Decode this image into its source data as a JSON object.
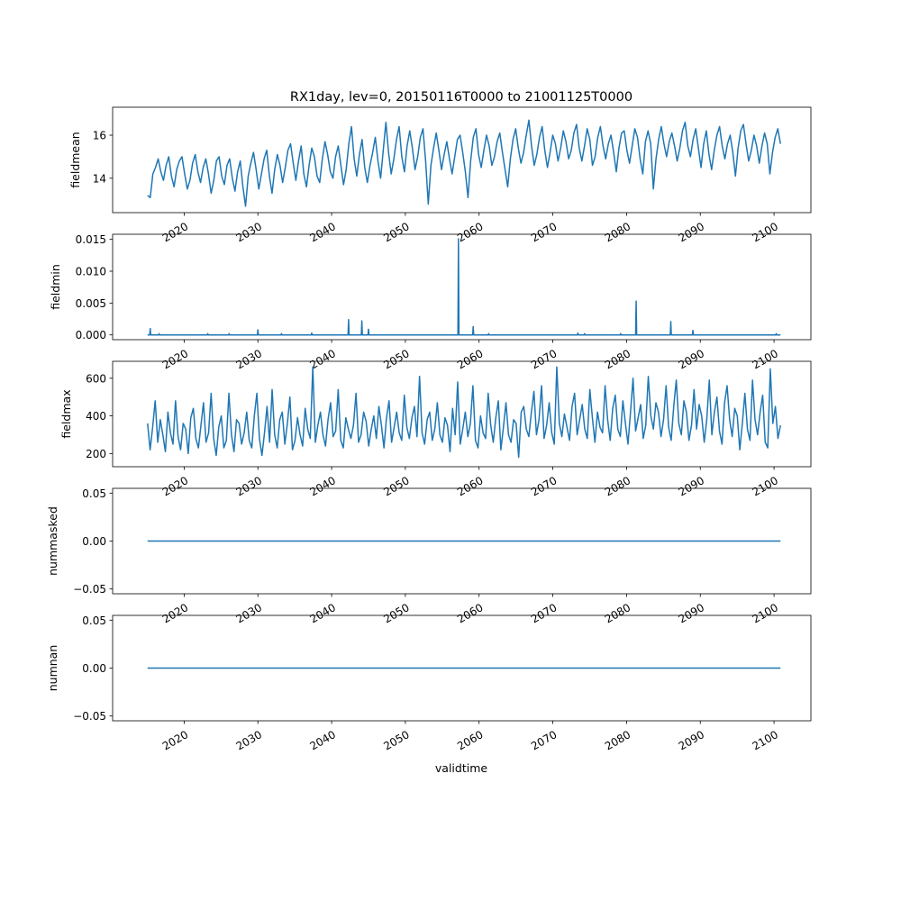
{
  "figure": {
    "title": "RX1day, lev=0, 20150116T0000 to 21001125T0000",
    "xlabel": "validtime",
    "line_color": "#1f77b4"
  },
  "chart_data": [
    {
      "type": "line",
      "ylabel": "fieldmean",
      "xlim": [
        2010.3,
        2105.0
      ],
      "ylim": [
        12.4,
        17.3
      ],
      "yticks": [
        14,
        16
      ],
      "yticklabels": [
        "14",
        "16"
      ],
      "xticks": [
        2020,
        2030,
        2040,
        2050,
        2060,
        2070,
        2080,
        2090,
        2100
      ],
      "xticklabels": [
        "2020",
        "2030",
        "2040",
        "2050",
        "2060",
        "2070",
        "2080",
        "2090",
        "2100"
      ],
      "series": [
        {
          "x_start": "2015-01",
          "x_end": "2100-11",
          "values": [
            13.2,
            13.1,
            14.2,
            14.5,
            14.9,
            14.3,
            13.9,
            14.6,
            15.0,
            14.1,
            13.6,
            14.4,
            14.8,
            15.0,
            14.2,
            13.5,
            13.9,
            14.7,
            15.1,
            14.3,
            13.8,
            14.5,
            14.9,
            14.2,
            13.3,
            13.9,
            14.8,
            15.0,
            14.1,
            13.7,
            14.6,
            14.9,
            14.0,
            13.4,
            14.3,
            14.8,
            13.6,
            12.7,
            14.1,
            14.7,
            15.2,
            14.4,
            13.5,
            14.2,
            14.9,
            15.3,
            14.1,
            13.3,
            14.4,
            15.1,
            14.6,
            13.8,
            14.5,
            15.3,
            15.6,
            14.7,
            13.9,
            14.8,
            15.5,
            14.2,
            13.6,
            14.6,
            15.4,
            15.0,
            14.1,
            13.8,
            14.9,
            15.7,
            15.1,
            14.3,
            14.0,
            15.0,
            15.5,
            14.6,
            13.7,
            14.4,
            15.6,
            16.4,
            14.9,
            14.1,
            15.1,
            15.8,
            14.5,
            13.8,
            14.6,
            15.2,
            15.9,
            14.8,
            14.0,
            15.3,
            16.6,
            15.2,
            14.2,
            14.9,
            15.8,
            16.4,
            15.0,
            14.3,
            15.5,
            16.2,
            15.4,
            14.4,
            15.0,
            15.9,
            16.3,
            14.8,
            12.8,
            14.6,
            15.4,
            16.1,
            15.3,
            14.4,
            15.1,
            15.7,
            14.9,
            14.2,
            15.0,
            15.8,
            16.0,
            15.2,
            14.3,
            13.1,
            14.8,
            15.9,
            16.3,
            15.1,
            14.5,
            15.3,
            16.0,
            15.5,
            14.6,
            15.0,
            15.7,
            16.1,
            15.2,
            14.4,
            13.6,
            14.9,
            15.8,
            16.3,
            15.4,
            14.7,
            15.2,
            16.0,
            16.7,
            15.5,
            14.6,
            15.1,
            15.9,
            16.4,
            15.3,
            14.5,
            15.2,
            16.0,
            15.6,
            14.8,
            15.4,
            16.2,
            15.7,
            14.9,
            15.3,
            16.1,
            16.5,
            15.4,
            14.8,
            15.5,
            16.3,
            15.8,
            14.6,
            15.0,
            15.9,
            16.4,
            15.5,
            14.9,
            15.6,
            16.0,
            15.2,
            14.3,
            15.4,
            16.1,
            16.2,
            15.3,
            14.7,
            15.5,
            16.3,
            15.9,
            14.9,
            14.2,
            15.7,
            16.2,
            15.6,
            13.5,
            14.9,
            15.8,
            16.4,
            15.6,
            15.0,
            15.7,
            16.1,
            15.5,
            14.8,
            15.4,
            16.2,
            16.6,
            15.5,
            15.0,
            15.8,
            16.3,
            15.4,
            14.5,
            15.6,
            16.2,
            15.1,
            14.4,
            15.3,
            16.0,
            16.4,
            15.5,
            14.9,
            15.6,
            16.0,
            15.2,
            14.1,
            15.4,
            16.2,
            16.5,
            15.6,
            14.8,
            15.3,
            16.0,
            15.5,
            14.7,
            15.5,
            16.1,
            15.6,
            14.2,
            15.2,
            15.9,
            16.3,
            15.6
          ]
        }
      ]
    },
    {
      "type": "line",
      "ylabel": "fieldmin",
      "xlim": [
        2010.3,
        2105.0
      ],
      "ylim": [
        -0.00075,
        0.0158
      ],
      "yticks": [
        0.0,
        0.005,
        0.01,
        0.015
      ],
      "yticklabels": [
        "0.000",
        "0.005",
        "0.010",
        "0.015"
      ],
      "xticks": [
        2020,
        2030,
        2040,
        2050,
        2060,
        2070,
        2080,
        2090,
        2100
      ],
      "xticklabels": [
        "2020",
        "2030",
        "2040",
        "2050",
        "2060",
        "2070",
        "2080",
        "2090",
        "2100"
      ],
      "series": [
        {
          "x_start": "2015-01",
          "x_end": "2100-11",
          "baseline": 0.0,
          "spikes": [
            {
              "x": 2015.4,
              "value": 0.001
            },
            {
              "x": 2016.6,
              "value": 0.0002
            },
            {
              "x": 2023.2,
              "value": 0.0002
            },
            {
              "x": 2026.1,
              "value": 0.0002
            },
            {
              "x": 2030.0,
              "value": 0.0008
            },
            {
              "x": 2033.2,
              "value": 0.0002
            },
            {
              "x": 2037.3,
              "value": 0.0003
            },
            {
              "x": 2042.3,
              "value": 0.0024
            },
            {
              "x": 2044.1,
              "value": 0.0022
            },
            {
              "x": 2045.0,
              "value": 0.0009
            },
            {
              "x": 2057.2,
              "value": 0.0151
            },
            {
              "x": 2059.2,
              "value": 0.0013
            },
            {
              "x": 2061.3,
              "value": 0.0002
            },
            {
              "x": 2073.4,
              "value": 0.0003
            },
            {
              "x": 2074.3,
              "value": 0.0002
            },
            {
              "x": 2079.2,
              "value": 0.0002
            },
            {
              "x": 2081.3,
              "value": 0.0053
            },
            {
              "x": 2086.0,
              "value": 0.0021
            },
            {
              "x": 2089.0,
              "value": 0.0007
            },
            {
              "x": 2100.3,
              "value": 0.0002
            }
          ]
        }
      ]
    },
    {
      "type": "line",
      "ylabel": "fieldmax",
      "xlim": [
        2010.3,
        2105.0
      ],
      "ylim": [
        130,
        690
      ],
      "yticks": [
        200,
        400,
        600
      ],
      "yticklabels": [
        "200",
        "400",
        "600"
      ],
      "xticks": [
        2020,
        2030,
        2040,
        2050,
        2060,
        2070,
        2080,
        2090,
        2100
      ],
      "xticklabels": [
        "2020",
        "2030",
        "2040",
        "2050",
        "2060",
        "2070",
        "2080",
        "2090",
        "2100"
      ],
      "series": [
        {
          "x_start": "2015-01",
          "x_end": "2100-11",
          "values": [
            360,
            220,
            340,
            480,
            260,
            380,
            300,
            210,
            420,
            310,
            250,
            480,
            290,
            220,
            360,
            330,
            200,
            390,
            440,
            280,
            230,
            350,
            470,
            260,
            310,
            520,
            280,
            190,
            340,
            400,
            230,
            270,
            520,
            300,
            210,
            380,
            360,
            250,
            310,
            420,
            270,
            230,
            400,
            520,
            280,
            190,
            310,
            450,
            260,
            540,
            300,
            230,
            380,
            420,
            250,
            360,
            500,
            220,
            270,
            390,
            300,
            240,
            440,
            330,
            280,
            660,
            260,
            350,
            420,
            300,
            240,
            380,
            470,
            290,
            320,
            540,
            270,
            230,
            390,
            330,
            280,
            350,
            520,
            260,
            300,
            420,
            370,
            240,
            330,
            400,
            280,
            450,
            350,
            230,
            390,
            480,
            260,
            340,
            420,
            310,
            270,
            510,
            340,
            280,
            390,
            450,
            290,
            610,
            310,
            250,
            380,
            420,
            270,
            330,
            470,
            300,
            260,
            390,
            350,
            210,
            440,
            300,
            580,
            250,
            330,
            420,
            290,
            360,
            560,
            270,
            230,
            400,
            310,
            280,
            520,
            350,
            260,
            390,
            480,
            220,
            340,
            470,
            300,
            260,
            380,
            360,
            180,
            420,
            450,
            330,
            290,
            420,
            530,
            300,
            380,
            560,
            280,
            350,
            470,
            310,
            250,
            660,
            360,
            290,
            410,
            340,
            270,
            450,
            520,
            300,
            380,
            460,
            330,
            280,
            540,
            390,
            260,
            420,
            340,
            310,
            560,
            380,
            270,
            440,
            510,
            330,
            290,
            480,
            360,
            250,
            420,
            600,
            320,
            390,
            460,
            280,
            350,
            610,
            400,
            330,
            470,
            420,
            290,
            380,
            560,
            340,
            270,
            450,
            590,
            360,
            300,
            480,
            420,
            270,
            350,
            540,
            330,
            460,
            400,
            260,
            380,
            590,
            300,
            420,
            500,
            320,
            250,
            470,
            560,
            380,
            290,
            440,
            400,
            220,
            360,
            520,
            330,
            270,
            590,
            380,
            300,
            420,
            510,
            260,
            230,
            650,
            360,
            450,
            280,
            350
          ]
        }
      ]
    },
    {
      "type": "line",
      "ylabel": "nummasked",
      "xlim": [
        2010.3,
        2105.0
      ],
      "ylim": [
        -0.055,
        0.055
      ],
      "yticks": [
        -0.05,
        0.0,
        0.05
      ],
      "yticklabels": [
        "−0.05",
        "0.00",
        "0.05"
      ],
      "xticks": [
        2020,
        2030,
        2040,
        2050,
        2060,
        2070,
        2080,
        2090,
        2100
      ],
      "xticklabels": [
        "2020",
        "2030",
        "2040",
        "2050",
        "2060",
        "2070",
        "2080",
        "2090",
        "2100"
      ],
      "series": [
        {
          "x_start": "2015-01",
          "x_end": "2100-11",
          "constant": 0.0
        }
      ]
    },
    {
      "type": "line",
      "ylabel": "numnan",
      "xlim": [
        2010.3,
        2105.0
      ],
      "ylim": [
        -0.055,
        0.055
      ],
      "yticks": [
        -0.05,
        0.0,
        0.05
      ],
      "yticklabels": [
        "−0.05",
        "0.00",
        "0.05"
      ],
      "xticks": [
        2020,
        2030,
        2040,
        2050,
        2060,
        2070,
        2080,
        2090,
        2100
      ],
      "xticklabels": [
        "2020",
        "2030",
        "2040",
        "2050",
        "2060",
        "2070",
        "2080",
        "2090",
        "2100"
      ],
      "series": [
        {
          "x_start": "2015-01",
          "x_end": "2100-11",
          "constant": 0.0
        }
      ]
    }
  ]
}
